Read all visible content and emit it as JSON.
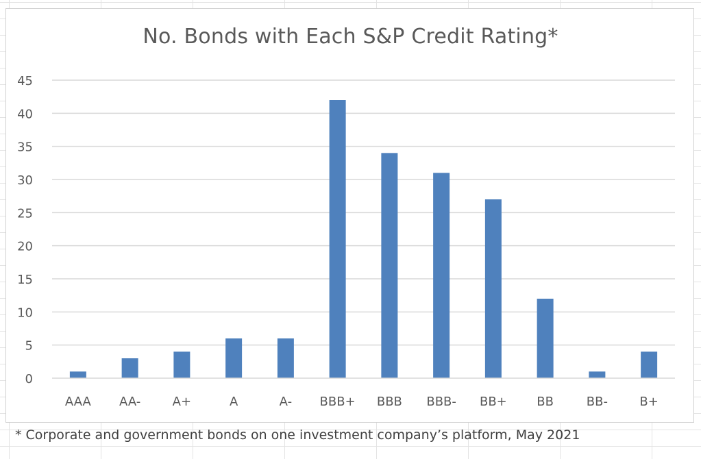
{
  "chart_data": {
    "type": "bar",
    "title": "No. Bonds with Each S&P Credit Rating*",
    "xlabel": "",
    "ylabel": "",
    "categories": [
      "AAA",
      "AA-",
      "A+",
      "A",
      "A-",
      "BBB+",
      "BBB",
      "BBB-",
      "BB+",
      "BB",
      "BB-",
      "B+"
    ],
    "values": [
      1,
      3,
      4,
      6,
      6,
      42,
      34,
      31,
      27,
      12,
      1,
      4
    ],
    "ylim": [
      0,
      45
    ],
    "yticks": [
      0,
      5,
      10,
      15,
      20,
      25,
      30,
      35,
      40,
      45
    ],
    "grid": true,
    "legend": "none",
    "bar_color": "#4f81bd",
    "gridline_color": "#d9d9d9",
    "text_color": "#595959"
  },
  "footnote": "* Corporate and government bonds on one investment company’s platform, May 2021"
}
